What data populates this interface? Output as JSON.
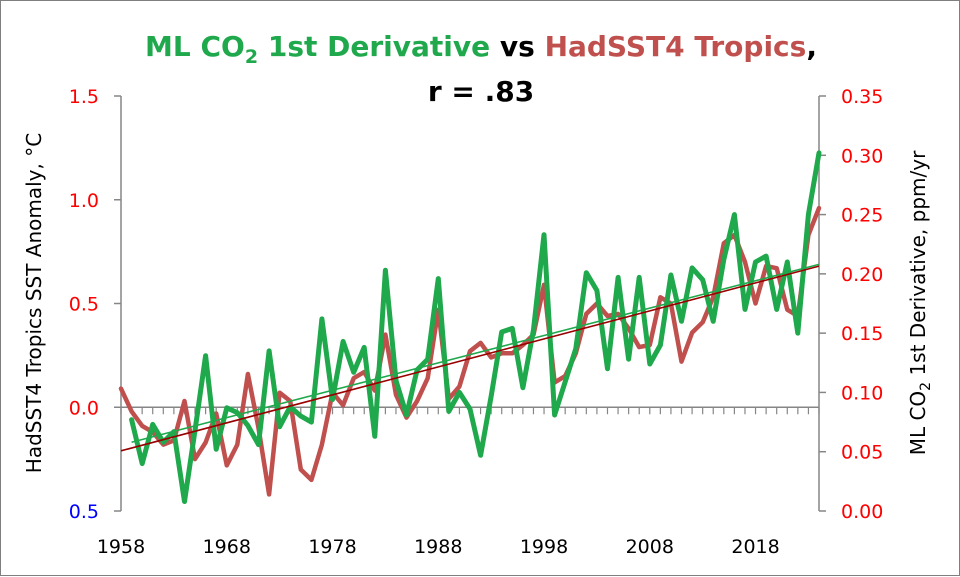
{
  "chart_data": {
    "type": "line",
    "title": {
      "part1": "ML CO",
      "part1_sub": "2",
      "part2": " 1st Derivative",
      "part3": " vs ",
      "part4": "HadSST4 Tropics",
      "part5": ",",
      "line2": "r = .83"
    },
    "ylabel_left": "HadSST4 Tropics SST Anomaly, °C",
    "ylabel_right": {
      "pre": "ML CO",
      "sub": "2",
      "post": " 1st Derivative, ppm/yr"
    },
    "left_axis": {
      "range": [
        -0.5,
        1.5
      ],
      "ticks": [
        {
          "value": 1.5,
          "label": "1.5"
        },
        {
          "value": 1.0,
          "label": "1.0"
        },
        {
          "value": 0.5,
          "label": "0.5"
        },
        {
          "value": 0.0,
          "label": "0.0"
        },
        {
          "value": -0.5,
          "label": "0.5"
        }
      ]
    },
    "right_axis": {
      "range": [
        0.0,
        0.35
      ],
      "ticks": [
        "0.35",
        "0.30",
        "0.25",
        "0.20",
        "0.15",
        "0.10",
        "0.05",
        "0.00"
      ]
    },
    "x_axis": {
      "range": [
        1958,
        2024
      ],
      "tick_labels": [
        "1958",
        "1968",
        "1978",
        "1988",
        "1998",
        "2008",
        "2018"
      ]
    },
    "colors": {
      "co2": "#1fa84c",
      "sst": "#c0504d",
      "sst_trend": "#990000",
      "co2_trend": "#1fa84c",
      "tick_left": "#ff0000",
      "tick_left_neg": "#0000ff",
      "tick_right": "#ff0000",
      "axis": "#868686"
    },
    "series": [
      {
        "name": "HadSST4 Tropics",
        "axis": "left",
        "start_year": 1958,
        "values": [
          0.09,
          -0.02,
          -0.09,
          -0.12,
          -0.18,
          -0.16,
          0.03,
          -0.25,
          -0.17,
          -0.03,
          -0.28,
          -0.18,
          0.16,
          -0.1,
          -0.42,
          0.07,
          0.03,
          -0.3,
          -0.35,
          -0.18,
          0.07,
          0.01,
          0.14,
          0.17,
          0.08,
          0.35,
          0.06,
          -0.05,
          0.03,
          0.14,
          0.47,
          0.04,
          0.1,
          0.27,
          0.31,
          0.24,
          0.26,
          0.26,
          0.3,
          0.35,
          0.59,
          0.12,
          0.15,
          0.26,
          0.45,
          0.5,
          0.44,
          0.45,
          0.38,
          0.29,
          0.3,
          0.53,
          0.5,
          0.22,
          0.36,
          0.41,
          0.53,
          0.79,
          0.83,
          0.7,
          0.5,
          0.68,
          0.67,
          0.47,
          0.44,
          0.83,
          0.96
        ]
      },
      {
        "name": "ML CO2 1st Derivative",
        "axis": "right",
        "start_year": 1959,
        "values": [
          0.077,
          0.04,
          0.073,
          0.058,
          0.067,
          0.008,
          0.068,
          0.131,
          0.052,
          0.087,
          0.083,
          0.072,
          0.056,
          0.135,
          0.071,
          0.088,
          0.08,
          0.075,
          0.162,
          0.094,
          0.143,
          0.117,
          0.138,
          0.063,
          0.203,
          0.11,
          0.081,
          0.119,
          0.128,
          0.196,
          0.084,
          0.1,
          0.086,
          0.047,
          0.097,
          0.151,
          0.154,
          0.104,
          0.153,
          0.233,
          0.081,
          0.109,
          0.137,
          0.201,
          0.186,
          0.12,
          0.197,
          0.128,
          0.197,
          0.124,
          0.14,
          0.199,
          0.16,
          0.205,
          0.195,
          0.16,
          0.212,
          0.25,
          0.17,
          0.21,
          0.215,
          0.17,
          0.21,
          0.15,
          0.25,
          0.302
        ]
      }
    ],
    "trendlines": [
      {
        "name": "HadSST4 Tropics trend",
        "axis": "left",
        "x": [
          1958,
          2024
        ],
        "y": [
          -0.21,
          0.68
        ]
      },
      {
        "name": "ML CO2 1st Derivative trend",
        "axis": "right",
        "x": [
          1959,
          2024
        ],
        "y": [
          0.058,
          0.208
        ]
      }
    ]
  }
}
